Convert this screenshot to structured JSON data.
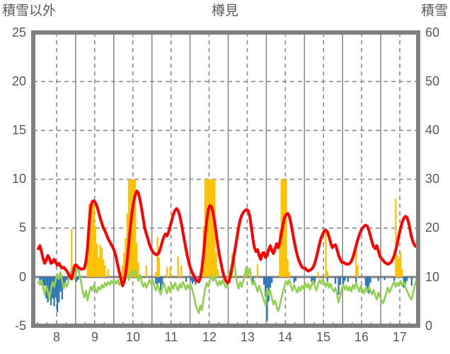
{
  "chart_data": {
    "type": "line+bar",
    "title": "樽見",
    "left_axis": {
      "label": "積雪以外",
      "ticks": [
        25,
        20,
        15,
        10,
        5,
        0,
        -5
      ],
      "range": [
        -5,
        25
      ]
    },
    "right_axis": {
      "label": "積雪",
      "ticks": [
        60,
        50,
        40,
        30,
        20,
        10,
        0
      ],
      "range": [
        0,
        60
      ]
    },
    "x_axis": {
      "ticks": [
        8,
        9,
        10,
        11,
        12,
        13,
        14,
        15,
        16,
        17
      ],
      "unit": "day",
      "gridlines": "solid at day boundaries, dashed at day centers"
    },
    "colors": {
      "red": "#FF0000",
      "green": "#92D050",
      "orange": "#FFC000",
      "blue": "#2E75B6",
      "purple": "#7030A0",
      "grid": "#8C8C8C",
      "border": "#808080",
      "text": "#595959"
    },
    "series": [
      {
        "name": "bars-orange",
        "type": "bar",
        "axis": "left",
        "color": "#FFC000",
        "bars": [
          [
            8,
            20,
            0.4
          ],
          [
            8,
            21,
            4.9
          ],
          [
            8,
            22,
            1.1
          ],
          [
            9,
            7,
            2.0
          ],
          [
            9,
            8,
            7.5
          ],
          [
            9,
            9,
            7.5
          ],
          [
            9,
            10,
            7.6
          ],
          [
            9,
            11,
            7.5
          ],
          [
            9,
            12,
            5.2
          ],
          [
            9,
            13,
            3.4
          ],
          [
            9,
            14,
            2.0
          ],
          [
            9,
            15,
            3.3
          ],
          [
            9,
            16,
            3.0
          ],
          [
            9,
            17,
            1.8
          ],
          [
            9,
            18,
            1.2
          ],
          [
            9,
            20,
            0.8
          ],
          [
            10,
            5,
            1.2
          ],
          [
            10,
            6,
            2.5
          ],
          [
            10,
            7,
            4.0
          ],
          [
            10,
            8,
            6.5
          ],
          [
            10,
            9,
            10
          ],
          [
            10,
            10,
            10
          ],
          [
            10,
            11,
            10
          ],
          [
            10,
            12,
            10
          ],
          [
            10,
            13,
            10
          ],
          [
            10,
            14,
            3.5
          ],
          [
            10,
            15,
            1.5
          ],
          [
            10,
            20,
            1.2
          ],
          [
            11,
            2,
            0.5
          ],
          [
            11,
            3,
            4.1
          ],
          [
            11,
            4,
            2.0
          ],
          [
            11,
            9,
            1.0
          ],
          [
            11,
            11,
            1.0
          ],
          [
            11,
            16,
            2.1
          ],
          [
            11,
            18,
            1.2
          ],
          [
            12,
            8,
            5.2
          ],
          [
            12,
            9,
            10
          ],
          [
            12,
            10,
            10
          ],
          [
            12,
            11,
            10
          ],
          [
            12,
            12,
            10
          ],
          [
            12,
            13,
            10
          ],
          [
            12,
            14,
            10
          ],
          [
            12,
            15,
            10
          ],
          [
            12,
            16,
            2.5
          ],
          [
            12,
            17,
            0.8
          ],
          [
            13,
            2,
            2.4
          ],
          [
            13,
            4,
            0.8
          ],
          [
            13,
            11,
            1.1
          ],
          [
            13,
            18,
            1.3
          ],
          [
            14,
            8,
            4.8
          ],
          [
            14,
            9,
            10
          ],
          [
            14,
            10,
            10
          ],
          [
            14,
            11,
            10
          ],
          [
            14,
            12,
            10
          ],
          [
            14,
            13,
            1.8
          ],
          [
            14,
            14,
            0.5
          ],
          [
            15,
            8,
            0.5
          ],
          [
            15,
            13,
            4.6
          ],
          [
            15,
            14,
            0.6
          ],
          [
            16,
            8,
            3.0
          ],
          [
            16,
            9,
            1.2
          ],
          [
            17,
            9,
            8.0
          ],
          [
            17,
            10,
            2.2
          ],
          [
            17,
            11,
            1.8
          ],
          [
            17,
            12,
            2.5
          ],
          [
            17,
            13,
            0.8
          ]
        ]
      },
      {
        "name": "bars-blue",
        "type": "bar",
        "axis": "left",
        "color": "#2E75B6",
        "bars": [
          [
            8,
            1,
            -0.4
          ],
          [
            8,
            2,
            -0.8
          ],
          [
            8,
            3,
            -1.3
          ],
          [
            8,
            4,
            -0.9
          ],
          [
            8,
            5,
            -2.2
          ],
          [
            8,
            6,
            -2.6
          ],
          [
            8,
            7,
            -1.6
          ],
          [
            8,
            8,
            -2.9
          ],
          [
            8,
            9,
            -2.2
          ],
          [
            8,
            10,
            -3.0
          ],
          [
            8,
            11,
            -2.1
          ],
          [
            8,
            12,
            -3.6
          ],
          [
            8,
            13,
            -2.6
          ],
          [
            8,
            14,
            -1.5
          ],
          [
            8,
            15,
            -2.3
          ],
          [
            8,
            16,
            -1.2
          ],
          [
            8,
            17,
            -0.6
          ],
          [
            8,
            18,
            -0.3
          ],
          [
            9,
            0,
            -0.5
          ],
          [
            9,
            1,
            -0.3
          ],
          [
            11,
            2,
            -0.7
          ],
          [
            11,
            3,
            -1.1
          ],
          [
            11,
            4,
            -0.6
          ],
          [
            11,
            5,
            -1.4
          ],
          [
            11,
            6,
            -0.8
          ],
          [
            11,
            21,
            -0.5
          ],
          [
            12,
            0,
            -0.4
          ],
          [
            12,
            1,
            -0.7
          ],
          [
            12,
            2,
            -0.5
          ],
          [
            12,
            3,
            -0.8
          ],
          [
            12,
            5,
            -0.6
          ],
          [
            13,
            14,
            -0.4
          ],
          [
            13,
            15,
            -0.6
          ],
          [
            13,
            22,
            -0.8
          ],
          [
            13,
            23,
            -2.0
          ],
          [
            14,
            0,
            -4.5
          ],
          [
            14,
            1,
            -2.5
          ],
          [
            14,
            2,
            -1.1
          ],
          [
            14,
            3,
            -0.6
          ],
          [
            14,
            17,
            -0.6
          ],
          [
            14,
            18,
            -0.4
          ],
          [
            15,
            4,
            -0.5
          ],
          [
            15,
            5,
            -0.8
          ],
          [
            15,
            6,
            -0.6
          ],
          [
            15,
            14,
            -0.6
          ],
          [
            15,
            19,
            -0.7
          ],
          [
            15,
            21,
            -1.8
          ],
          [
            15,
            22,
            -0.8
          ],
          [
            16,
            0,
            -0.7
          ],
          [
            16,
            1,
            -0.4
          ],
          [
            16,
            3,
            -0.5
          ],
          [
            16,
            8,
            -0.6
          ],
          [
            16,
            14,
            -0.9
          ],
          [
            16,
            15,
            -1.3
          ],
          [
            16,
            16,
            -1.7
          ],
          [
            16,
            17,
            -0.6
          ],
          [
            16,
            22,
            -0.4
          ],
          [
            17,
            2,
            -0.3
          ],
          [
            17,
            8,
            -0.4
          ],
          [
            17,
            14,
            -1.1
          ],
          [
            17,
            15,
            -0.7
          ],
          [
            17,
            16,
            -0.4
          ],
          [
            17,
            19,
            -0.9
          ]
        ]
      },
      {
        "name": "line-green",
        "type": "line",
        "axis": "left",
        "color": "#92D050",
        "width": 2.6,
        "start_day": 8,
        "interval": "hourly",
        "values": [
          -0.5,
          -0.8,
          -0.3,
          -1.0,
          -1.8,
          -0.9,
          -1.5,
          -2.3,
          -1.2,
          -0.5,
          -1.0,
          -0.3,
          0.3,
          -0.2,
          0.5,
          -0.4,
          -1.2,
          -0.6,
          -1.0,
          -0.4,
          0.2,
          0.8,
          0.3,
          -0.2,
          0.5,
          1.1,
          0.2,
          -0.6,
          -1.5,
          -2.1,
          -1.4,
          -2.4,
          -1.6,
          -1.0,
          -1.4,
          -0.8,
          -1.2,
          -1.6,
          -1.0,
          -1.3,
          -0.8,
          -1.1,
          -0.6,
          -0.9,
          -0.5,
          -0.8,
          -0.4,
          -0.6,
          -0.4,
          -0.7,
          -0.3,
          -0.8,
          -0.4,
          -0.9,
          -0.5,
          -0.2,
          0.3,
          -0.3,
          0.2,
          0.6,
          0.2,
          0.7,
          0.1,
          -0.4,
          0.2,
          -0.5,
          -1.0,
          -0.6,
          -1.1,
          -0.7,
          -0.3,
          -0.7,
          -0.3,
          -0.9,
          -1.4,
          -0.8,
          -1.3,
          -1.8,
          -1.1,
          -0.6,
          -1.2,
          -1.7,
          -1.0,
          -1.5,
          -0.8,
          -1.2,
          -0.6,
          -1.0,
          -1.4,
          -0.7,
          -1.1,
          -0.5,
          -0.9,
          -1.3,
          -0.8,
          -1.2,
          -0.8,
          -1.4,
          -2.0,
          -2.8,
          -3.3,
          -3.7,
          -2.9,
          -3.4,
          -2.2,
          -1.2,
          -0.6,
          -1.0,
          -0.3,
          0.2,
          -0.4,
          0.1,
          -0.5,
          -0.9,
          -0.4,
          -0.8,
          -0.3,
          -0.7,
          -1.1,
          -0.6,
          0.3,
          0.8,
          1.5,
          2.2,
          0.6,
          -0.6,
          -1.2,
          -0.5,
          -1.0,
          -0.4,
          0.3,
          1.0,
          0.2,
          0.9,
          -0.3,
          -0.8,
          -0.4,
          -1.0,
          -1.5,
          -0.9,
          -1.4,
          -1.9,
          -2.4,
          -2.9,
          -1.2,
          -1.8,
          -1.4,
          -2.2,
          -2.8,
          -2.4,
          -3.1,
          -3.5,
          -2.9,
          -2.2,
          -1.5,
          -0.9,
          -0.4,
          -0.8,
          -0.3,
          -0.9,
          -1.4,
          -0.8,
          -1.2,
          -1.6,
          -1.0,
          -1.4,
          -0.9,
          -1.2,
          -0.6,
          -1.1,
          -0.7,
          -1.3,
          -0.8,
          -0.4,
          -0.9,
          -1.4,
          -0.8,
          -0.3,
          -0.7,
          -0.2,
          -0.6,
          -1.0,
          -0.5,
          -1.1,
          -0.7,
          -1.2,
          -1.5,
          -1.1,
          -1.8,
          -2.6,
          -1.9,
          -1.2,
          -0.8,
          -1.3,
          -0.9,
          -1.4,
          -1.0,
          -1.5,
          -0.8,
          -1.2,
          -0.6,
          -1.1,
          -1.5,
          -0.9,
          -1.3,
          -1.7,
          -1.1,
          -1.5,
          -1.0,
          -1.4,
          -1.8,
          -1.3,
          -1.9,
          -2.3,
          -1.6,
          -2.0,
          -2.4,
          -2.7,
          -2.2,
          -1.6,
          -1.1,
          -1.6,
          -1.2,
          -0.8,
          -0.5,
          -1.0,
          -0.6,
          -0.9,
          -0.4,
          -0.9,
          -0.5,
          -1.0,
          -1.4,
          -1.8,
          -2.1,
          -2.3,
          -1.5,
          -0.8,
          -0.3,
          0.4
        ]
      },
      {
        "name": "line-red",
        "type": "line",
        "axis": "left",
        "color": "#FF0000",
        "width": 4,
        "start_day": 8,
        "interval": "hourly",
        "values": [
          2.9,
          3.2,
          2.6,
          1.9,
          1.4,
          1.7,
          2.2,
          1.9,
          1.4,
          1.5,
          1.8,
          1.5,
          1.2,
          1.4,
          1.1,
          0.9,
          1.0,
          0.8,
          0.6,
          0.3,
          0.0,
          -0.2,
          0.5,
          1.2,
          1.2,
          1.0,
          0.9,
          0.8,
          0.8,
          0.9,
          1.6,
          3.0,
          5.5,
          7.2,
          7.7,
          7.8,
          7.6,
          7.2,
          6.6,
          6.0,
          5.5,
          5.0,
          4.7,
          4.3,
          3.9,
          3.6,
          3.3,
          3.0,
          2.6,
          2.0,
          1.2,
          0.5,
          -0.2,
          -0.9,
          -0.5,
          0.4,
          1.8,
          3.5,
          5.2,
          6.6,
          7.7,
          8.4,
          8.8,
          8.6,
          7.9,
          7.0,
          6.0,
          5.0,
          4.4,
          3.9,
          3.3,
          2.9,
          2.6,
          2.4,
          2.3,
          2.3,
          2.5,
          3.0,
          3.6,
          4.1,
          4.4,
          4.2,
          4.6,
          5.2,
          5.8,
          6.4,
          6.8,
          7.0,
          6.8,
          6.3,
          5.5,
          4.6,
          3.7,
          2.8,
          2.0,
          1.3,
          0.8,
          0.4,
          0.1,
          -0.2,
          -0.4,
          -0.5,
          -0.1,
          0.9,
          2.4,
          4.2,
          5.8,
          6.9,
          7.3,
          7.2,
          6.6,
          5.6,
          4.4,
          3.2,
          2.2,
          1.4,
          0.6,
          0.0,
          -0.4,
          -0.6,
          -0.5,
          0.2,
          1.0,
          2.0,
          3.0,
          4.0,
          5.0,
          5.8,
          6.3,
          6.6,
          6.8,
          6.9,
          6.8,
          6.3,
          5.2,
          4.0,
          3.0,
          2.6,
          2.8,
          2.2,
          1.8,
          2.4,
          2.5,
          2.0,
          2.2,
          2.8,
          3.2,
          2.7,
          2.4,
          2.9,
          3.4,
          3.0,
          3.6,
          4.5,
          5.4,
          6.1,
          6.4,
          6.5,
          6.2,
          5.5,
          4.6,
          3.7,
          2.9,
          2.2,
          1.7,
          1.3,
          1.0,
          0.9,
          0.9,
          0.7,
          0.6,
          0.7,
          0.8,
          1.0,
          1.4,
          2.0,
          2.7,
          3.4,
          4.0,
          4.4,
          4.7,
          4.8,
          4.6,
          4.1,
          3.5,
          3.0,
          3.2,
          3.3,
          2.8,
          2.2,
          1.8,
          1.5,
          1.5,
          1.4,
          1.3,
          1.3,
          1.4,
          1.6,
          2.0,
          2.6,
          3.2,
          3.8,
          4.3,
          4.7,
          5.0,
          5.2,
          5.3,
          5.2,
          4.8,
          4.2,
          3.6,
          3.1,
          2.9,
          3.2,
          2.7,
          2.1,
          1.9,
          1.7,
          1.5,
          1.4,
          1.3,
          1.4,
          1.5,
          1.8,
          2.2,
          2.8,
          3.5,
          4.3,
          5.0,
          5.6,
          6.0,
          6.2,
          6.1,
          5.6,
          4.8,
          4.0,
          3.5,
          3.2,
          3.1,
          3.2
        ]
      },
      {
        "name": "line-purple-sekisetsu",
        "type": "line",
        "axis": "right",
        "color": "#7030A0",
        "width": 3,
        "constant": 0
      }
    ]
  }
}
